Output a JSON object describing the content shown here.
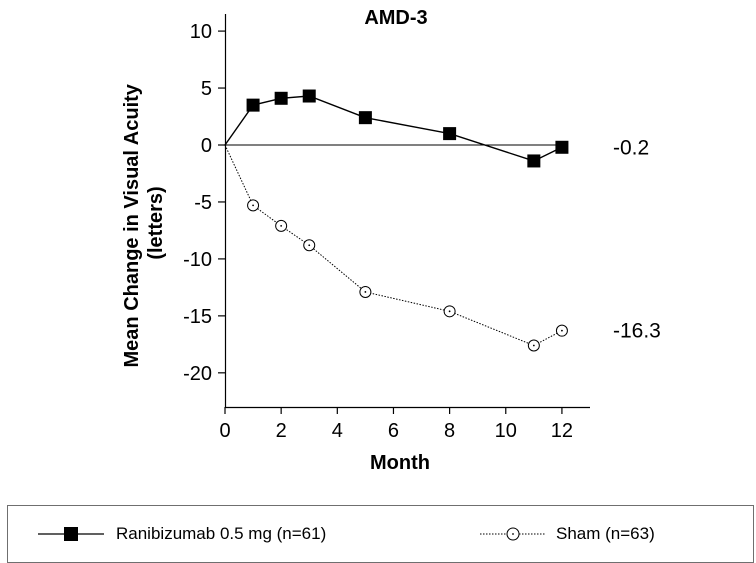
{
  "chart_data": {
    "type": "line",
    "title": "AMD-3",
    "xlabel": "Month",
    "ylabel_lines": [
      "Mean Change in Visual Acuity",
      "(letters)"
    ],
    "xlim": [
      0,
      13
    ],
    "ylim": [
      -23,
      11.5
    ],
    "x_ticks": [
      0,
      2,
      4,
      6,
      8,
      10,
      12
    ],
    "y_ticks": [
      10,
      5,
      0,
      -5,
      -10,
      -15,
      -20
    ],
    "reference_line_y": 0,
    "grid": false,
    "legend_position": "bottom",
    "series": [
      {
        "name": "Ranibizumab 0.5 mg (n=61)",
        "marker": "filled-square",
        "line_style": "solid",
        "color": "#000000",
        "x": [
          0,
          1,
          2,
          3,
          5,
          8,
          11,
          12
        ],
        "values": [
          0,
          3.5,
          4.1,
          4.3,
          2.4,
          1.0,
          -1.4,
          -0.2
        ],
        "end_label": "-0.2"
      },
      {
        "name": "Sham (n=63)",
        "marker": "open-circle",
        "line_style": "dotted",
        "color": "#000000",
        "x": [
          0,
          1,
          2,
          3,
          5,
          8,
          11,
          12
        ],
        "values": [
          0,
          -5.3,
          -7.1,
          -8.8,
          -12.9,
          -14.6,
          -17.6,
          -16.3
        ],
        "end_label": "-16.3"
      }
    ]
  }
}
